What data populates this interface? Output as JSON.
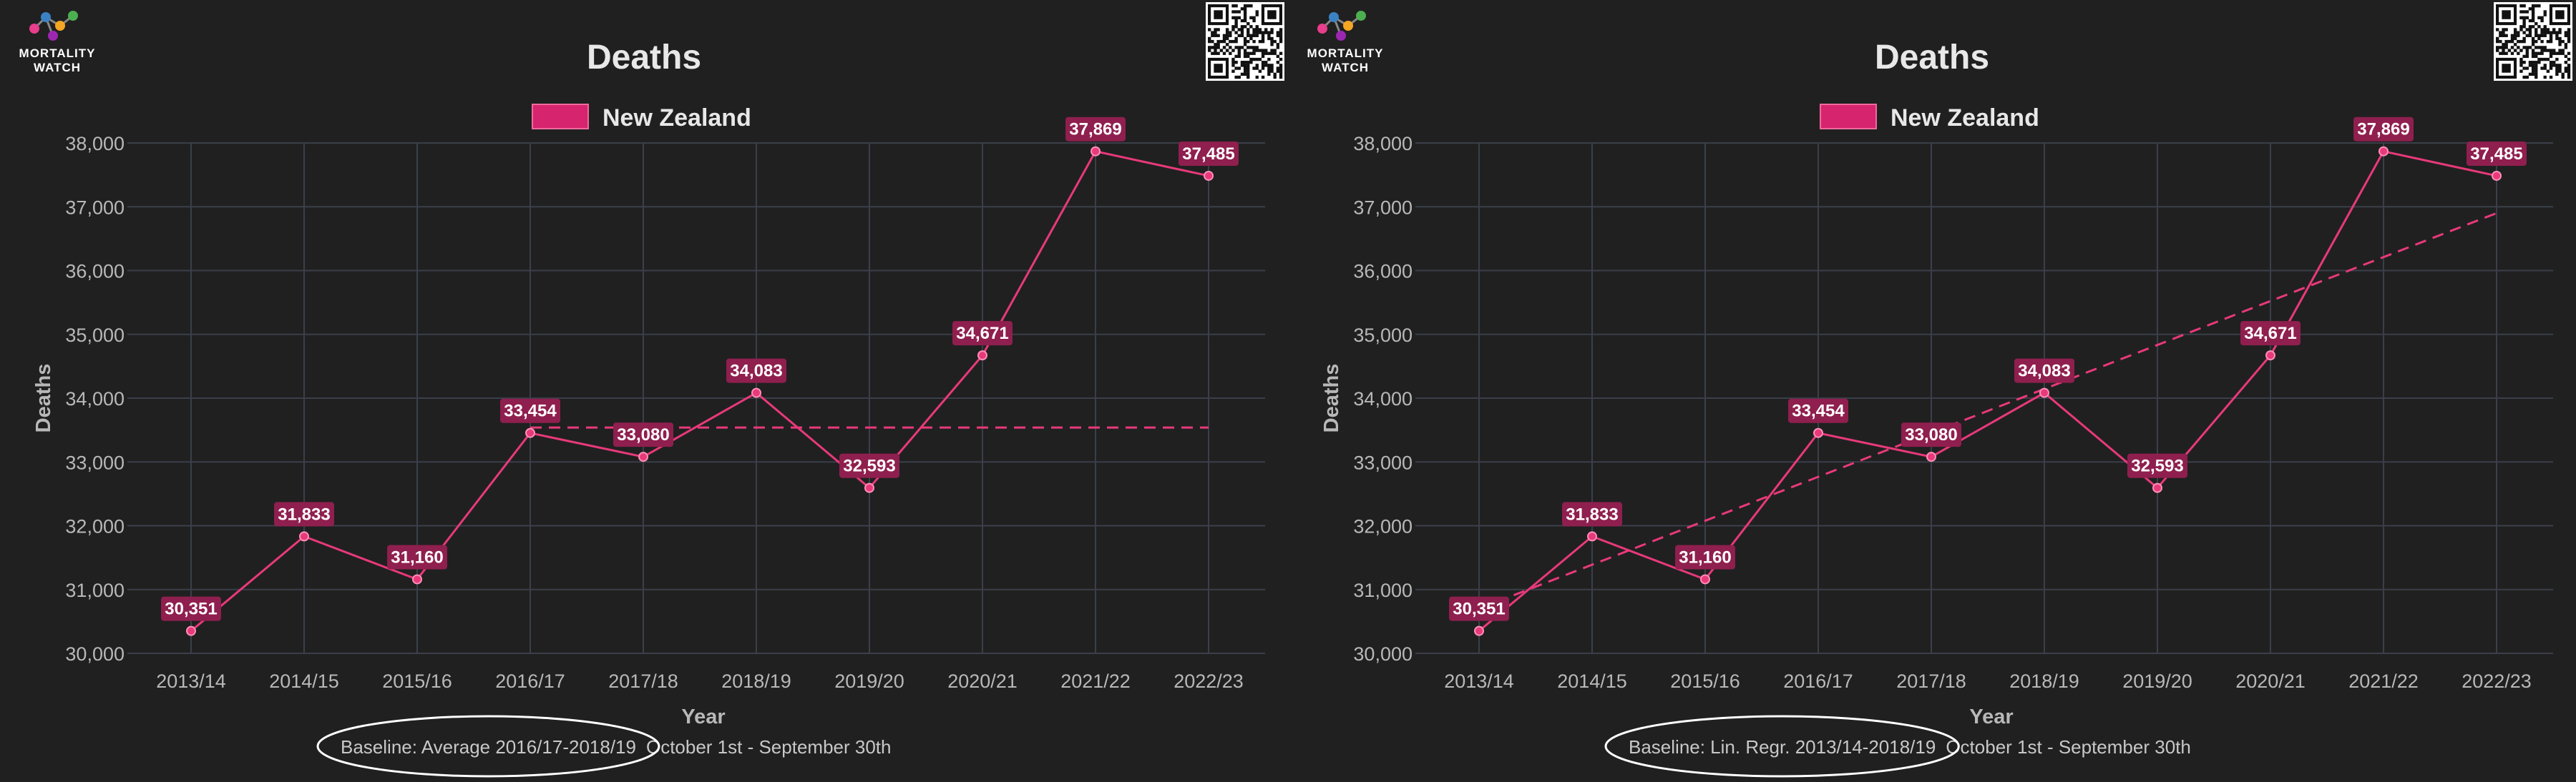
{
  "brand": {
    "logo_line1": "MORTALITY",
    "logo_line2": "WATCH"
  },
  "chart_data": [
    {
      "type": "line",
      "title": "Deaths",
      "xlabel": "Year",
      "ylabel": "Deaths",
      "ylim": [
        30000,
        38000
      ],
      "yticks": [
        30000,
        31000,
        32000,
        33000,
        34000,
        35000,
        36000,
        37000,
        38000
      ],
      "ytick_labels": [
        "30,000",
        "31,000",
        "32,000",
        "33,000",
        "34,000",
        "35,000",
        "36,000",
        "37,000",
        "38,000"
      ],
      "categories": [
        "2013/14",
        "2014/15",
        "2015/16",
        "2016/17",
        "2017/18",
        "2018/19",
        "2019/20",
        "2020/21",
        "2021/22",
        "2022/23"
      ],
      "series": [
        {
          "name": "New Zealand",
          "color": "#e8397a",
          "values": [
            30351,
            31833,
            31160,
            33454,
            33080,
            34083,
            32593,
            34671,
            37869,
            37485
          ],
          "data_labels": [
            "30,351",
            "31,833",
            "31,160",
            "33,454",
            "33,080",
            "34,083",
            "32,593",
            "34,671",
            "37,869",
            "37,485"
          ]
        }
      ],
      "baseline": {
        "type": "average",
        "start_index": 3,
        "end_index": 9,
        "start_value": 33539,
        "end_value": 33539,
        "style": "dashed"
      },
      "legend_position": "top-center",
      "grid": true,
      "footer": {
        "baseline_text": "Baseline: Average 2016/17-2018/19",
        "period_text": "October 1st - September 30th"
      }
    },
    {
      "type": "line",
      "title": "Deaths",
      "xlabel": "Year",
      "ylabel": "Deaths",
      "ylim": [
        30000,
        38000
      ],
      "yticks": [
        30000,
        31000,
        32000,
        33000,
        34000,
        35000,
        36000,
        37000,
        38000
      ],
      "ytick_labels": [
        "30,000",
        "31,000",
        "32,000",
        "33,000",
        "34,000",
        "35,000",
        "36,000",
        "37,000",
        "38,000"
      ],
      "categories": [
        "2013/14",
        "2014/15",
        "2015/16",
        "2016/17",
        "2017/18",
        "2018/19",
        "2019/20",
        "2020/21",
        "2021/22",
        "2022/23"
      ],
      "series": [
        {
          "name": "New Zealand",
          "color": "#e8397a",
          "values": [
            30351,
            31833,
            31160,
            33454,
            33080,
            34083,
            32593,
            34671,
            37869,
            37485
          ],
          "data_labels": [
            "30,351",
            "31,833",
            "31,160",
            "33,454",
            "33,080",
            "34,083",
            "32,593",
            "34,671",
            "37,869",
            "37,485"
          ]
        }
      ],
      "baseline": {
        "type": "linear-regression",
        "start_index": 0,
        "end_index": 9,
        "start_value": 30700,
        "end_value": 36900,
        "style": "dashed"
      },
      "legend_position": "top-center",
      "grid": true,
      "footer": {
        "baseline_text": "Baseline: Lin. Regr. 2013/14-2018/19",
        "period_text": "October 1st - September 30th"
      }
    }
  ],
  "colors": {
    "background": "#202020",
    "grid": "#3a3f4a",
    "series": "#e8397a",
    "label_bg": "#8f1f4e"
  }
}
